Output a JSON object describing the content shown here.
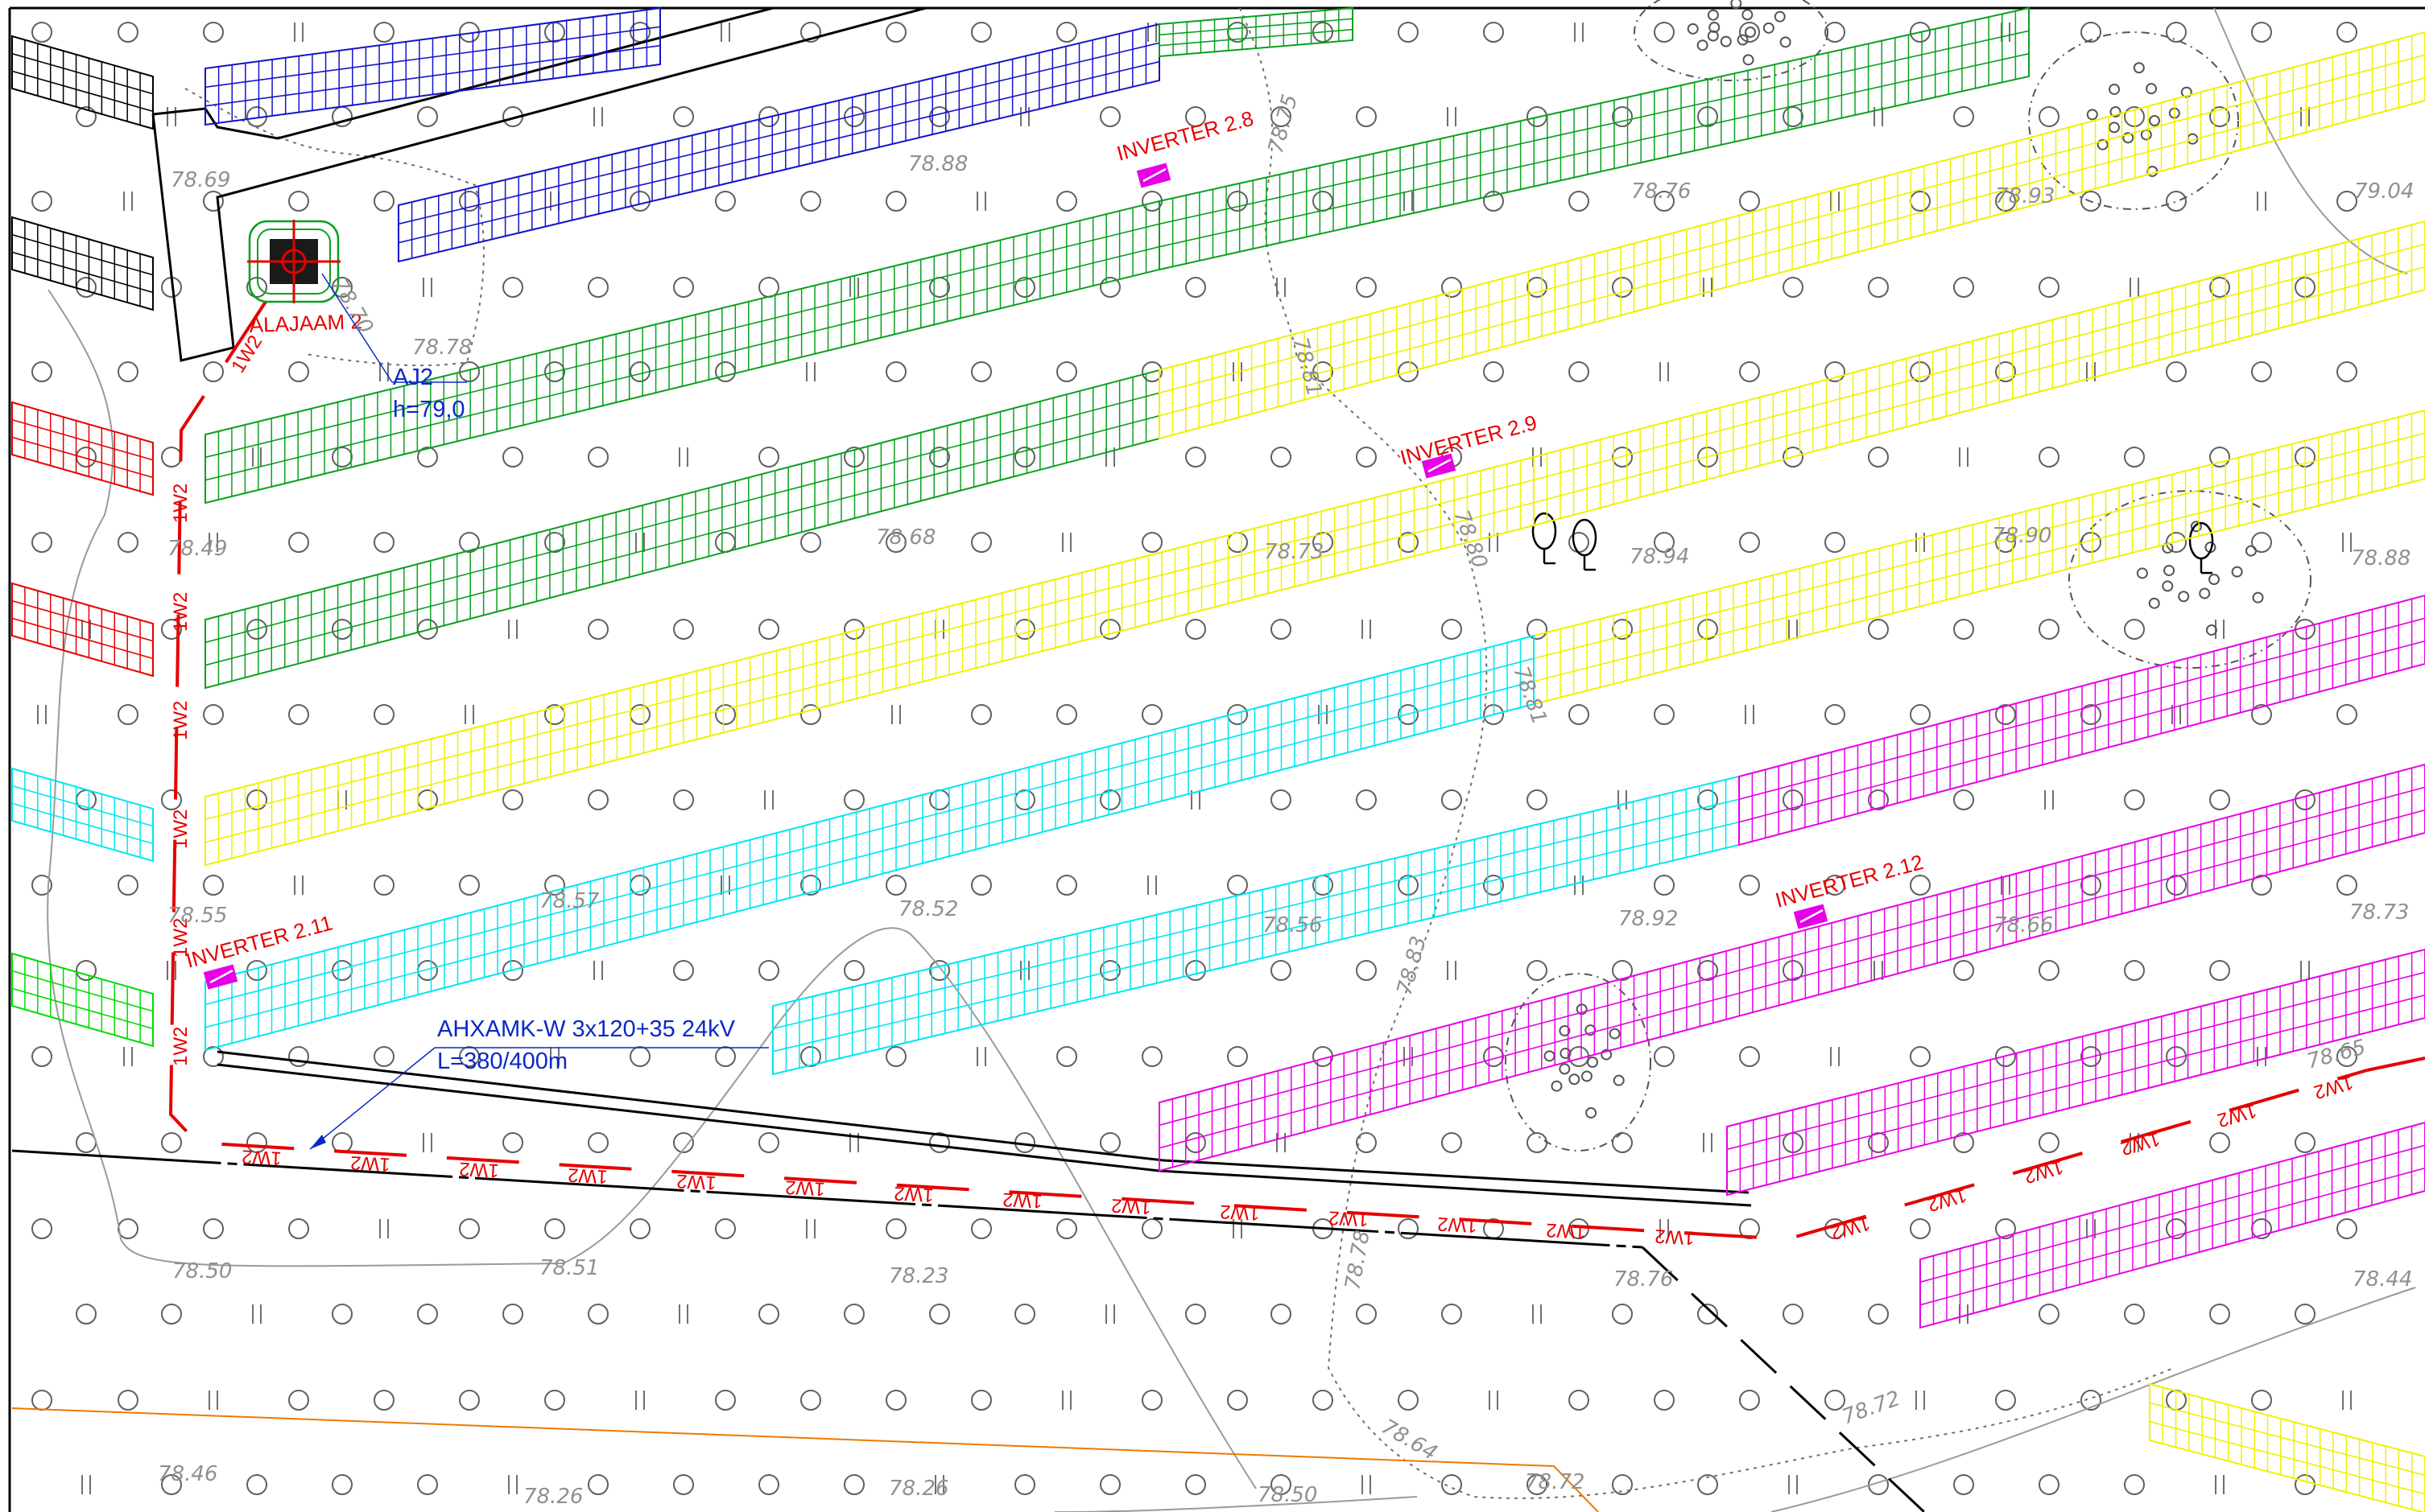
{
  "colors": {
    "blue": "#1414c8",
    "green": "#0aa01e",
    "yellow": "#f0f000",
    "cyan": "#00e6f0",
    "magenta": "#e600e6",
    "red": "#e60000",
    "black": "#000000",
    "gray": "#808080",
    "orange": "#f07800",
    "inverter_fill": "#e600e6",
    "annotation_blue": "#0a28c8"
  },
  "inverters": [
    {
      "label": "INVERTER 2.8"
    },
    {
      "label": "INVERTER 2.9"
    },
    {
      "label": "INVERTER 2.11"
    },
    {
      "label": "INVERTER 2.12"
    }
  ],
  "substation": {
    "label": "ALAJAAM 2"
  },
  "aj2": {
    "line1": "AJ2",
    "line2": "h=79,0"
  },
  "cable": {
    "line1": "AHXAMK-W 3x120+35 24kV",
    "line2": "L=380/400m"
  },
  "cable_tag": "1W2",
  "elevations": [
    "78.69",
    "78.88",
    "78.76",
    "79.04",
    "78.93",
    "78.78",
    "78.70",
    "78.75",
    "78.49",
    "78.68",
    "78.73",
    "78.94",
    "78.90",
    "78.88",
    "78.55",
    "78.57",
    "78.52",
    "78.56",
    "78.92",
    "78.66",
    "78.73",
    "78.50",
    "78.51",
    "78.23",
    "78.78",
    "78.76",
    "78.44",
    "78.46",
    "78.26",
    "78.26",
    "78.50",
    "78.72",
    "78.64",
    "78.72",
    "78.83",
    "78.80",
    "78.81",
    "78.81",
    "78.65"
  ]
}
